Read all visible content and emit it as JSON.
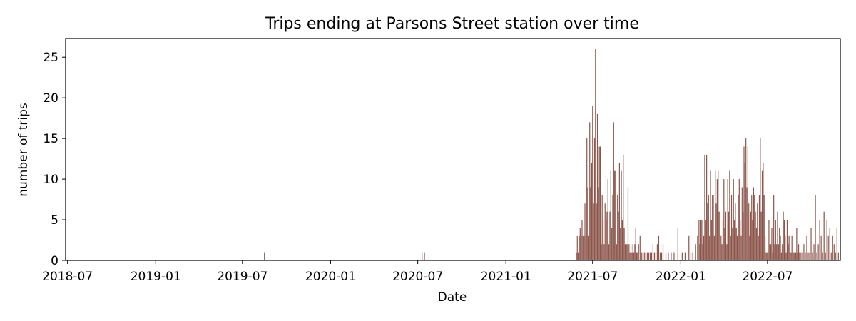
{
  "chart_data": {
    "type": "bar",
    "title": "Trips ending at Parsons Street station over time",
    "xlabel": "Date",
    "ylabel": "number of trips",
    "x_range": [
      "2018-06-27",
      "2022-11-30"
    ],
    "ylim": [
      0,
      27.3
    ],
    "y_ticks": [
      0,
      5,
      10,
      15,
      20,
      25
    ],
    "x_ticks": [
      "2018-07",
      "2019-01",
      "2019-07",
      "2020-01",
      "2020-07",
      "2021-01",
      "2021-07",
      "2022-01",
      "2022-07"
    ],
    "bar_color": "#8c564b",
    "grid": false,
    "series": [
      {
        "points": [
          [
            "2019-08-16",
            1
          ],
          [
            "2020-07-10",
            1
          ],
          [
            "2020-07-15",
            1
          ],
          [
            "2021-05-28",
            1
          ],
          [
            "2021-05-30",
            3
          ],
          [
            "2021-06-01",
            1
          ],
          [
            "2021-06-03",
            3
          ],
          [
            "2021-06-05",
            4
          ],
          [
            "2021-06-07",
            3
          ],
          [
            "2021-06-09",
            5
          ],
          [
            "2021-06-11",
            3
          ],
          [
            "2021-06-13",
            3
          ],
          [
            "2021-06-15",
            7
          ],
          [
            "2021-06-17",
            3
          ],
          [
            "2021-06-19",
            15
          ],
          [
            "2021-06-21",
            9
          ],
          [
            "2021-06-23",
            3
          ],
          [
            "2021-06-25",
            17
          ],
          [
            "2021-06-27",
            9
          ],
          [
            "2021-06-29",
            12
          ],
          [
            "2021-07-01",
            19
          ],
          [
            "2021-07-03",
            7
          ],
          [
            "2021-07-05",
            15
          ],
          [
            "2021-07-07",
            26
          ],
          [
            "2021-07-09",
            7
          ],
          [
            "2021-07-11",
            18
          ],
          [
            "2021-07-13",
            9
          ],
          [
            "2021-07-15",
            14
          ],
          [
            "2021-07-17",
            14
          ],
          [
            "2021-07-19",
            2
          ],
          [
            "2021-07-21",
            8
          ],
          [
            "2021-07-23",
            5
          ],
          [
            "2021-07-25",
            2
          ],
          [
            "2021-07-27",
            7
          ],
          [
            "2021-07-29",
            5
          ],
          [
            "2021-07-31",
            6
          ],
          [
            "2021-08-02",
            10
          ],
          [
            "2021-08-04",
            2
          ],
          [
            "2021-08-06",
            6
          ],
          [
            "2021-08-08",
            11
          ],
          [
            "2021-08-10",
            4
          ],
          [
            "2021-08-12",
            8
          ],
          [
            "2021-08-14",
            17
          ],
          [
            "2021-08-16",
            11
          ],
          [
            "2021-08-18",
            11
          ],
          [
            "2021-08-20",
            2
          ],
          [
            "2021-08-22",
            8
          ],
          [
            "2021-08-24",
            6
          ],
          [
            "2021-08-26",
            12
          ],
          [
            "2021-08-28",
            4
          ],
          [
            "2021-08-30",
            11
          ],
          [
            "2021-09-01",
            5
          ],
          [
            "2021-09-03",
            13
          ],
          [
            "2021-09-05",
            4
          ],
          [
            "2021-09-07",
            2
          ],
          [
            "2021-09-09",
            2
          ],
          [
            "2021-09-11",
            2
          ],
          [
            "2021-09-13",
            9
          ],
          [
            "2021-09-15",
            2
          ],
          [
            "2021-09-17",
            1
          ],
          [
            "2021-09-19",
            2
          ],
          [
            "2021-09-21",
            1
          ],
          [
            "2021-09-23",
            2
          ],
          [
            "2021-09-25",
            1
          ],
          [
            "2021-09-27",
            2
          ],
          [
            "2021-09-29",
            4
          ],
          [
            "2021-10-01",
            1
          ],
          [
            "2021-10-03",
            1
          ],
          [
            "2021-10-05",
            2
          ],
          [
            "2021-10-08",
            3
          ],
          [
            "2021-10-11",
            1
          ],
          [
            "2021-10-14",
            1
          ],
          [
            "2021-10-17",
            1
          ],
          [
            "2021-10-20",
            1
          ],
          [
            "2021-10-23",
            1
          ],
          [
            "2021-10-26",
            1
          ],
          [
            "2021-10-29",
            1
          ],
          [
            "2021-11-01",
            1
          ],
          [
            "2021-11-04",
            2
          ],
          [
            "2021-11-07",
            1
          ],
          [
            "2021-11-10",
            1
          ],
          [
            "2021-11-13",
            2
          ],
          [
            "2021-11-16",
            3
          ],
          [
            "2021-11-19",
            1
          ],
          [
            "2021-11-22",
            1
          ],
          [
            "2021-11-25",
            2
          ],
          [
            "2021-12-01",
            1
          ],
          [
            "2021-12-06",
            1
          ],
          [
            "2021-12-12",
            1
          ],
          [
            "2021-12-18",
            1
          ],
          [
            "2021-12-26",
            4
          ],
          [
            "2022-01-04",
            1
          ],
          [
            "2022-01-10",
            1
          ],
          [
            "2022-01-18",
            3
          ],
          [
            "2022-01-22",
            1
          ],
          [
            "2022-01-26",
            1
          ],
          [
            "2022-02-01",
            2
          ],
          [
            "2022-02-05",
            3
          ],
          [
            "2022-02-08",
            5
          ],
          [
            "2022-02-10",
            2
          ],
          [
            "2022-02-12",
            5
          ],
          [
            "2022-02-14",
            5
          ],
          [
            "2022-02-16",
            2
          ],
          [
            "2022-02-18",
            3
          ],
          [
            "2022-02-20",
            13
          ],
          [
            "2022-02-22",
            5
          ],
          [
            "2022-02-24",
            13
          ],
          [
            "2022-02-26",
            7
          ],
          [
            "2022-02-28",
            8
          ],
          [
            "2022-03-02",
            3
          ],
          [
            "2022-03-04",
            11
          ],
          [
            "2022-03-06",
            5
          ],
          [
            "2022-03-08",
            8
          ],
          [
            "2022-03-10",
            8
          ],
          [
            "2022-03-12",
            3
          ],
          [
            "2022-03-14",
            11
          ],
          [
            "2022-03-16",
            7
          ],
          [
            "2022-03-18",
            10
          ],
          [
            "2022-03-20",
            11
          ],
          [
            "2022-03-22",
            6
          ],
          [
            "2022-03-24",
            6
          ],
          [
            "2022-03-26",
            3
          ],
          [
            "2022-03-28",
            2
          ],
          [
            "2022-03-30",
            5
          ],
          [
            "2022-04-01",
            10
          ],
          [
            "2022-04-03",
            4
          ],
          [
            "2022-04-05",
            6
          ],
          [
            "2022-04-07",
            2
          ],
          [
            "2022-04-09",
            10
          ],
          [
            "2022-04-11",
            6
          ],
          [
            "2022-04-13",
            11
          ],
          [
            "2022-04-15",
            3
          ],
          [
            "2022-04-17",
            8
          ],
          [
            "2022-04-19",
            4
          ],
          [
            "2022-04-21",
            10
          ],
          [
            "2022-04-23",
            5
          ],
          [
            "2022-04-25",
            7
          ],
          [
            "2022-04-27",
            4
          ],
          [
            "2022-04-29",
            3
          ],
          [
            "2022-05-01",
            8
          ],
          [
            "2022-05-03",
            10
          ],
          [
            "2022-05-05",
            5
          ],
          [
            "2022-05-07",
            3
          ],
          [
            "2022-05-09",
            9
          ],
          [
            "2022-05-11",
            6
          ],
          [
            "2022-05-13",
            14
          ],
          [
            "2022-05-15",
            12
          ],
          [
            "2022-05-17",
            15
          ],
          [
            "2022-05-19",
            9
          ],
          [
            "2022-05-21",
            14
          ],
          [
            "2022-05-23",
            7
          ],
          [
            "2022-05-25",
            3
          ],
          [
            "2022-05-27",
            6
          ],
          [
            "2022-05-29",
            8
          ],
          [
            "2022-05-31",
            5
          ],
          [
            "2022-06-02",
            9
          ],
          [
            "2022-06-04",
            8
          ],
          [
            "2022-06-06",
            6
          ],
          [
            "2022-06-08",
            4
          ],
          [
            "2022-06-10",
            7
          ],
          [
            "2022-06-12",
            3
          ],
          [
            "2022-06-14",
            8
          ],
          [
            "2022-06-16",
            15
          ],
          [
            "2022-06-18",
            6
          ],
          [
            "2022-06-20",
            11
          ],
          [
            "2022-06-22",
            12
          ],
          [
            "2022-06-24",
            8
          ],
          [
            "2022-06-26",
            3
          ],
          [
            "2022-06-28",
            1
          ],
          [
            "2022-06-30",
            1
          ],
          [
            "2022-07-02",
            1
          ],
          [
            "2022-07-04",
            5
          ],
          [
            "2022-07-06",
            2
          ],
          [
            "2022-07-08",
            2
          ],
          [
            "2022-07-10",
            4
          ],
          [
            "2022-07-12",
            1
          ],
          [
            "2022-07-14",
            8
          ],
          [
            "2022-07-16",
            2
          ],
          [
            "2022-07-18",
            5
          ],
          [
            "2022-07-20",
            2
          ],
          [
            "2022-07-22",
            6
          ],
          [
            "2022-07-24",
            2
          ],
          [
            "2022-07-26",
            4
          ],
          [
            "2022-07-28",
            3
          ],
          [
            "2022-07-30",
            1
          ],
          [
            "2022-08-01",
            2
          ],
          [
            "2022-08-03",
            6
          ],
          [
            "2022-08-05",
            5
          ],
          [
            "2022-08-07",
            3
          ],
          [
            "2022-08-09",
            1
          ],
          [
            "2022-08-11",
            5
          ],
          [
            "2022-08-13",
            2
          ],
          [
            "2022-08-15",
            3
          ],
          [
            "2022-08-17",
            1
          ],
          [
            "2022-08-19",
            1
          ],
          [
            "2022-08-21",
            3
          ],
          [
            "2022-08-23",
            1
          ],
          [
            "2022-08-25",
            1
          ],
          [
            "2022-08-27",
            1
          ],
          [
            "2022-08-29",
            1
          ],
          [
            "2022-08-31",
            4
          ],
          [
            "2022-09-02",
            1
          ],
          [
            "2022-09-04",
            2
          ],
          [
            "2022-09-06",
            1
          ],
          [
            "2022-09-09",
            1
          ],
          [
            "2022-09-12",
            1
          ],
          [
            "2022-09-15",
            2
          ],
          [
            "2022-09-18",
            1
          ],
          [
            "2022-09-21",
            3
          ],
          [
            "2022-09-24",
            1
          ],
          [
            "2022-09-27",
            1
          ],
          [
            "2022-09-30",
            4
          ],
          [
            "2022-10-03",
            1
          ],
          [
            "2022-10-06",
            2
          ],
          [
            "2022-10-09",
            8
          ],
          [
            "2022-10-12",
            1
          ],
          [
            "2022-10-15",
            2
          ],
          [
            "2022-10-18",
            5
          ],
          [
            "2022-10-21",
            3
          ],
          [
            "2022-10-24",
            1
          ],
          [
            "2022-10-27",
            6
          ],
          [
            "2022-10-30",
            1
          ],
          [
            "2022-11-02",
            5
          ],
          [
            "2022-11-05",
            3
          ],
          [
            "2022-11-08",
            4
          ],
          [
            "2022-11-11",
            1
          ],
          [
            "2022-11-14",
            3
          ],
          [
            "2022-11-17",
            2
          ],
          [
            "2022-11-20",
            1
          ],
          [
            "2022-11-23",
            4
          ],
          [
            "2022-11-26",
            1
          ]
        ]
      }
    ]
  }
}
